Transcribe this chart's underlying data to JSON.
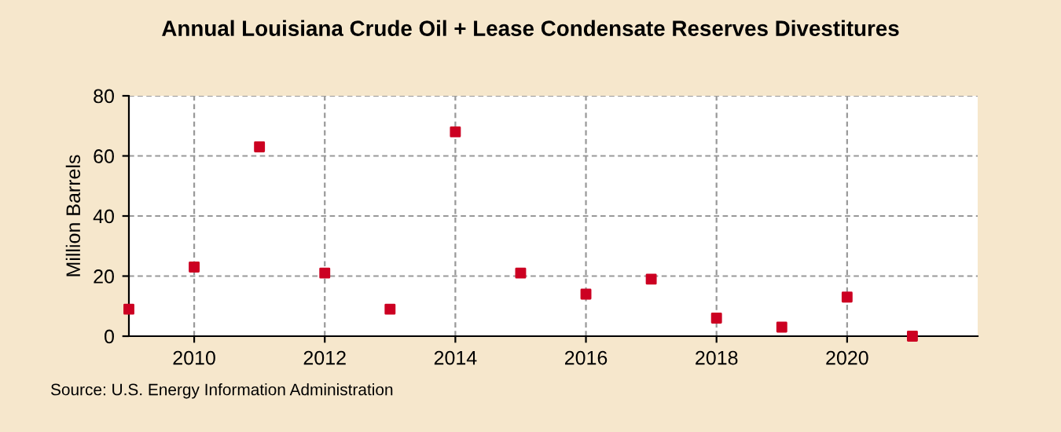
{
  "chart_data": {
    "type": "scatter",
    "title": "Annual Louisiana Crude Oil + Lease Condensate Reserves Divestitures",
    "ylabel": "Million Barrels",
    "x": [
      2009,
      2010,
      2011,
      2012,
      2013,
      2014,
      2015,
      2016,
      2017,
      2018,
      2019,
      2020,
      2021
    ],
    "series": [
      {
        "color": "#cc0022",
        "values": [
          9,
          23,
          63,
          21,
          9,
          68,
          21,
          14,
          19,
          6,
          3,
          13,
          0
        ]
      }
    ],
    "xlim": [
      2009,
      2022
    ],
    "xticks": [
      2010,
      2012,
      2014,
      2016,
      2018,
      2020
    ],
    "ylim": [
      0,
      80
    ],
    "yticks": [
      0,
      20,
      40,
      60,
      80
    ],
    "grid": true,
    "marker": "square",
    "annotations": [
      "Source: U.S. Energy Information Administration"
    ]
  }
}
